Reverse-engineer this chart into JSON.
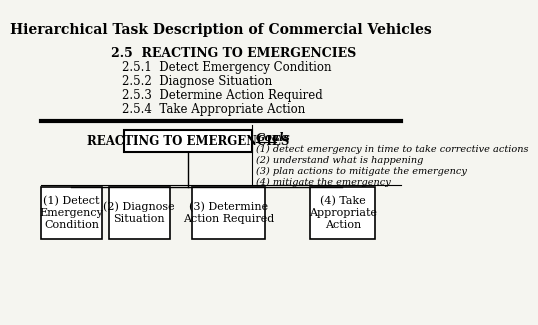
{
  "title": "Hierarchical Task Description of Commercial Vehicles",
  "section_header": "2.5  REACTING TO EMERGENCIES",
  "sub_items": [
    "2.5.1  Detect Emergency Condition",
    "2.5.2  Diagnose Situation",
    "2.5.3  Determine Action Required",
    "2.5.4  Take Appropriate Action"
  ],
  "box_main_label": "REACTING TO EMERGENCIES",
  "goals_label": "Goals",
  "goals": [
    "(1) detect emergency in time to take corrective actions",
    "(2) understand what is happening",
    "(3) plan actions to mitigate the emergency",
    "(4) mitigate the emergency"
  ],
  "child_boxes": [
    "(1) Detect\nEmergency\nCondition",
    "(2) Diagnose\nSituation",
    "(3) Determine\nAction Required",
    "(4) Take\nAppropriate\nAction"
  ],
  "bg_color": "#f5f5f0",
  "box_color": "#ffffff",
  "text_color": "#000000",
  "divider_color": "#000000"
}
